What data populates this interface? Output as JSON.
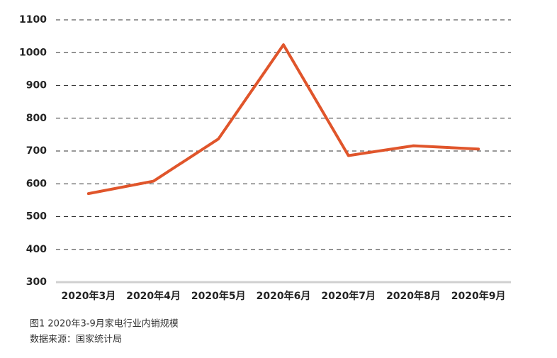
{
  "chart_data": {
    "type": "line",
    "categories": [
      "2020年3月",
      "2020年4月",
      "2020年5月",
      "2020年6月",
      "2020年7月",
      "2020年8月",
      "2020年9月"
    ],
    "series": [
      {
        "name": "家电行业内销规模",
        "color": "#e0552b",
        "values": [
          570,
          608,
          737,
          1024,
          686,
          716,
          706
        ]
      }
    ],
    "ylim": [
      300,
      1100
    ],
    "yticks": [
      300,
      400,
      500,
      600,
      700,
      800,
      900,
      1000,
      1100
    ],
    "grid": true,
    "notes": [
      "图1 2020年3-9月家电行业内销规模",
      "数据来源：国家统计局"
    ]
  }
}
